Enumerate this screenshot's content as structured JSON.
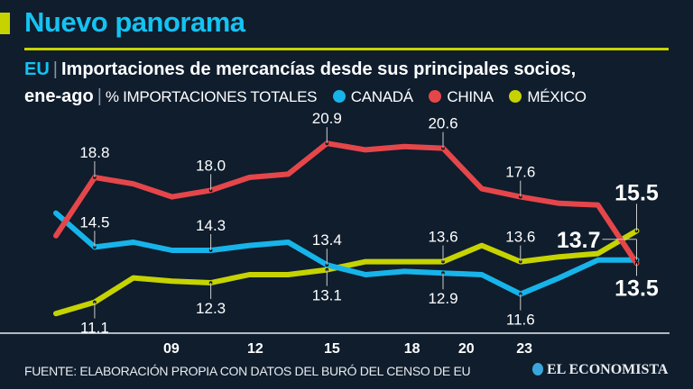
{
  "header": {
    "title": "Nuevo panorama"
  },
  "subtitle": {
    "country": "EU",
    "text1": "Importaciones de mercancías desde sus principales socios,",
    "period": "ene-ago",
    "unit": "% IMPORTACIONES TOTALES"
  },
  "footer": {
    "source": "FUENTE: ELABORACIÓN PROPIA CON DATOS DEL BURÓ DEL CENSO DE EU",
    "logo": "EL ECONOMISTA"
  },
  "chart_data": {
    "type": "line",
    "title": "EU | Importaciones de mercancías desde sus principales socios, ene-ago",
    "ylabel": "% IMPORTACIONES TOTALES",
    "x": [
      0,
      1,
      2,
      3,
      4,
      5,
      6,
      7,
      8,
      9,
      10,
      11,
      12,
      13,
      14,
      15
    ],
    "xticks": [
      {
        "label": "09",
        "at": 2.98
      },
      {
        "label": "12",
        "at": 5.15
      },
      {
        "label": "15",
        "at": 7.13
      },
      {
        "label": "18",
        "at": 9.2
      },
      {
        "label": "20",
        "at": 10.6
      },
      {
        "label": "23",
        "at": 12.1
      }
    ],
    "ylim": [
      9.2,
      22
    ],
    "grid": false,
    "legend": "top",
    "series": [
      {
        "name": "CANADÁ",
        "color": "#17b4ea",
        "values": [
          16.6,
          14.5,
          14.8,
          14.3,
          14.3,
          14.6,
          14.8,
          13.4,
          12.8,
          13.0,
          12.9,
          12.8,
          11.6,
          12.6,
          13.7,
          13.7
        ]
      },
      {
        "name": "CHINA",
        "color": "#e5464a",
        "values": [
          15.2,
          18.8,
          18.4,
          17.6,
          18.0,
          18.8,
          19.0,
          20.9,
          20.5,
          20.7,
          20.6,
          18.1,
          17.6,
          17.2,
          17.1,
          13.5
        ]
      },
      {
        "name": "MÉXICO",
        "color": "#c6d300",
        "values": [
          10.4,
          11.1,
          12.6,
          12.4,
          12.3,
          12.8,
          12.8,
          13.1,
          13.6,
          13.6,
          13.6,
          14.6,
          13.6,
          13.9,
          14.1,
          15.5
        ]
      }
    ],
    "annotations": [
      {
        "series": 1,
        "i": 1,
        "text": "18.8",
        "pos": "above"
      },
      {
        "series": 1,
        "i": 4,
        "text": "18.0",
        "pos": "above"
      },
      {
        "series": 1,
        "i": 7,
        "text": "20.9",
        "pos": "above"
      },
      {
        "series": 1,
        "i": 10,
        "text": "20.6",
        "pos": "above"
      },
      {
        "series": 1,
        "i": 12,
        "text": "17.6",
        "pos": "above"
      },
      {
        "series": 0,
        "i": 1,
        "text": "14.5",
        "pos": "above"
      },
      {
        "series": 0,
        "i": 4,
        "text": "14.3",
        "pos": "above"
      },
      {
        "series": 0,
        "i": 7,
        "text": "13.4",
        "pos": "above"
      },
      {
        "series": 0,
        "i": 10,
        "text": "12.9",
        "pos": "below"
      },
      {
        "series": 0,
        "i": 12,
        "text": "11.6",
        "pos": "below"
      },
      {
        "series": 2,
        "i": 1,
        "text": "11.1",
        "pos": "below"
      },
      {
        "series": 2,
        "i": 4,
        "text": "12.3",
        "pos": "below"
      },
      {
        "series": 2,
        "i": 7,
        "text": "13.1",
        "pos": "below"
      },
      {
        "series": 2,
        "i": 10,
        "text": "13.6",
        "pos": "above"
      },
      {
        "series": 2,
        "i": 12,
        "text": "13.6",
        "pos": "above"
      },
      {
        "series": 2,
        "i": 15,
        "text": "15.5",
        "pos": "above",
        "big": true
      },
      {
        "series": 0,
        "i": 15,
        "text": "13.7",
        "pos": "left",
        "big": true
      },
      {
        "series": 1,
        "i": 15,
        "text": "13.5",
        "pos": "below",
        "big": true
      }
    ]
  }
}
